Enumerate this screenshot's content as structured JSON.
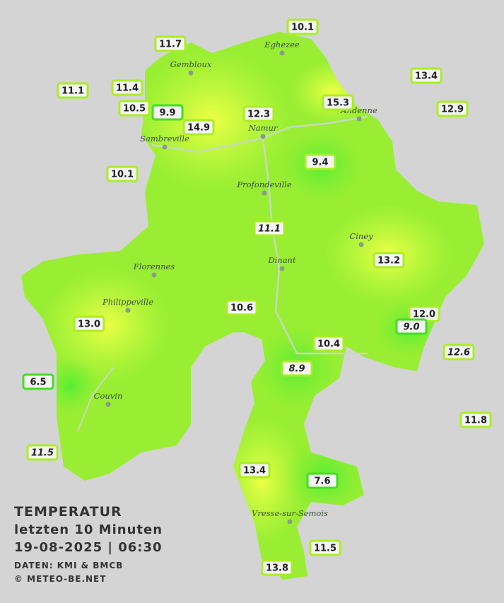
{
  "title": {
    "lines": [
      "TEMPERATUR",
      "letzten 10 Minuten",
      "19-08-2025 | 06:30"
    ],
    "source": "DATEN: KMI & BMCB",
    "copyright": "© METEO-BE.NET"
  },
  "towns": [
    "Eghezee",
    "Gembloux",
    "Andenne",
    "Namur",
    "Sambreville",
    "Profondeville",
    "Ciney",
    "Dinant",
    "Florennes",
    "Philippeville",
    "Couvin",
    "Vresse-sur-Semois"
  ],
  "stations": [
    "10.1",
    "11.7",
    "13.4",
    "11.1",
    "11.4",
    "15.3",
    "12.9",
    "10.5",
    "9.9",
    "12.3",
    "14.9",
    "9.4",
    "10.1",
    "11.1",
    "13.2",
    "10.6",
    "12.0",
    "9.0",
    "13.0",
    "10.4",
    "12.6",
    "8.9",
    "6.5",
    "11.8",
    "11.5",
    "13.4",
    "7.6",
    "11.5",
    "13.8"
  ]
}
